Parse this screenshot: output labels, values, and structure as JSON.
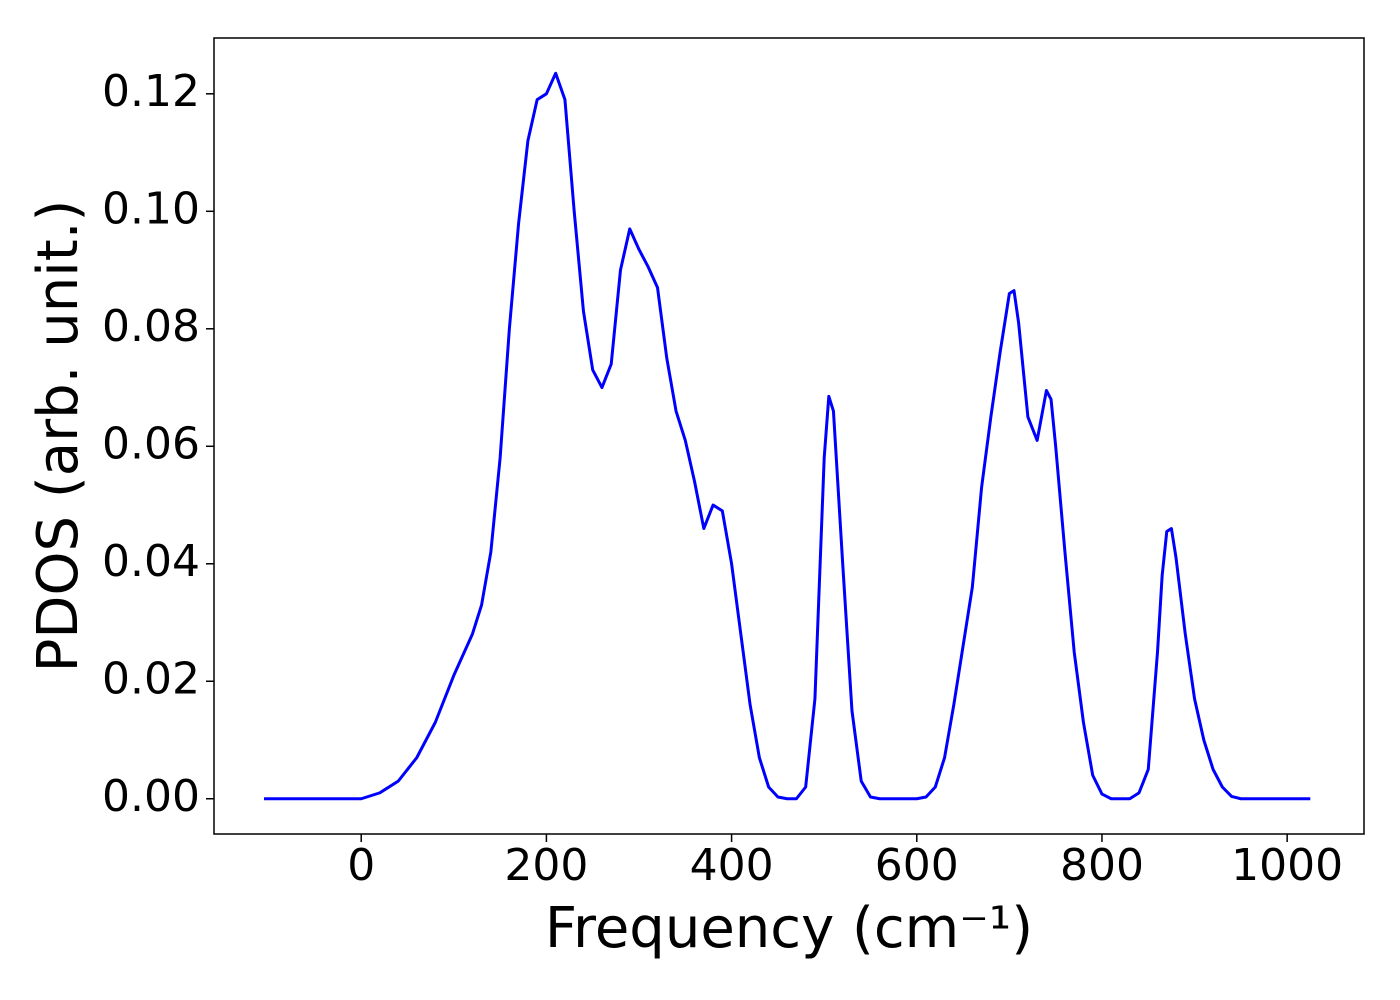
{
  "chart_data": {
    "type": "line",
    "xlabel": "Frequency (cm⁻¹)",
    "ylabel": "PDOS (arb. unit.)",
    "color": "#0000ff",
    "x": [
      -105,
      -50,
      0,
      20,
      40,
      60,
      80,
      100,
      120,
      130,
      140,
      150,
      160,
      170,
      180,
      190,
      200,
      210,
      220,
      230,
      240,
      250,
      260,
      270,
      280,
      290,
      300,
      310,
      320,
      330,
      340,
      350,
      360,
      370,
      380,
      390,
      400,
      410,
      420,
      430,
      440,
      450,
      460,
      470,
      480,
      490,
      500,
      505,
      510,
      520,
      530,
      540,
      550,
      560,
      600,
      610,
      620,
      630,
      640,
      650,
      660,
      670,
      680,
      690,
      700,
      705,
      710,
      720,
      730,
      740,
      745,
      750,
      760,
      770,
      780,
      790,
      800,
      810,
      830,
      840,
      850,
      860,
      865,
      870,
      875,
      880,
      890,
      900,
      910,
      920,
      930,
      940,
      950,
      1025
    ],
    "values": [
      0,
      0,
      0,
      0.001,
      0.003,
      0.007,
      0.013,
      0.021,
      0.028,
      0.033,
      0.042,
      0.058,
      0.08,
      0.098,
      0.112,
      0.119,
      0.12,
      0.1235,
      0.119,
      0.1,
      0.083,
      0.073,
      0.07,
      0.074,
      0.09,
      0.097,
      0.0935,
      0.0905,
      0.087,
      0.075,
      0.066,
      0.061,
      0.054,
      0.046,
      0.05,
      0.049,
      0.04,
      0.028,
      0.016,
      0.007,
      0.002,
      0.0003,
      0,
      0,
      0.002,
      0.017,
      0.058,
      0.0685,
      0.066,
      0.04,
      0.015,
      0.003,
      0.0003,
      0,
      0,
      0.0003,
      0.002,
      0.007,
      0.016,
      0.026,
      0.036,
      0.053,
      0.065,
      0.076,
      0.086,
      0.0865,
      0.081,
      0.065,
      0.061,
      0.0695,
      0.068,
      0.06,
      0.042,
      0.025,
      0.013,
      0.004,
      0.0008,
      0,
      0,
      0.001,
      0.005,
      0.025,
      0.038,
      0.0455,
      0.046,
      0.041,
      0.028,
      0.017,
      0.01,
      0.005,
      0.002,
      0.0004,
      0,
      0
    ],
    "xlim": [
      -159,
      1083
    ],
    "ylim": [
      -0.006,
      0.1295
    ],
    "xticks": [
      0,
      200,
      400,
      600,
      800,
      1000
    ],
    "yticks": [
      {
        "value": 0,
        "label": "0.00"
      },
      {
        "value": 0.02,
        "label": "0.02"
      },
      {
        "value": 0.04,
        "label": "0.04"
      },
      {
        "value": 0.06,
        "label": "0.06"
      },
      {
        "value": 0.08,
        "label": "0.08"
      },
      {
        "value": 0.1,
        "label": "0.10"
      },
      {
        "value": 0.12,
        "label": "0.12"
      }
    ]
  }
}
